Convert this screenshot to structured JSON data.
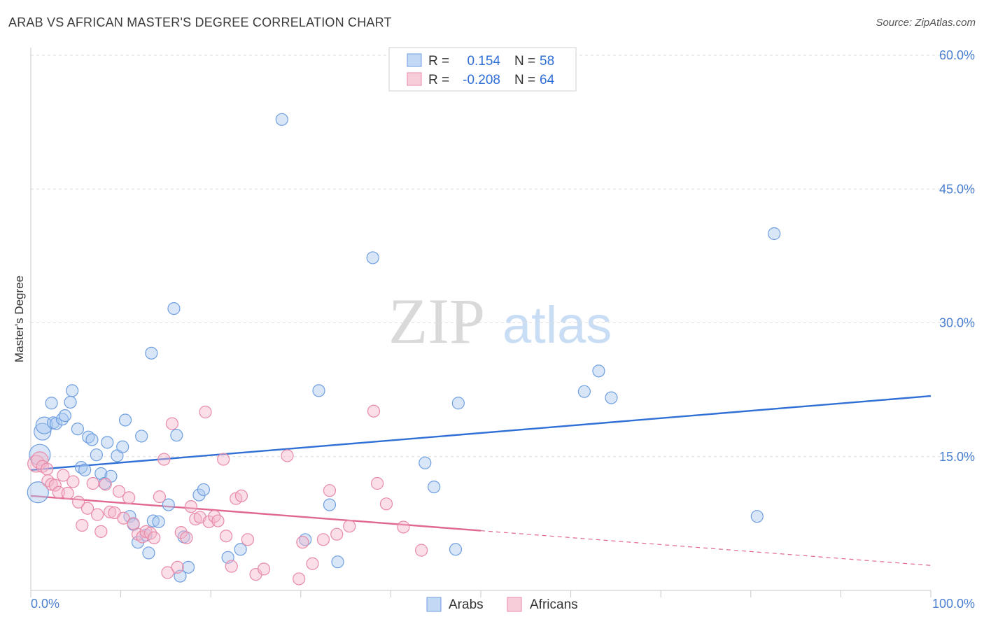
{
  "header": {
    "title": "ARAB VS AFRICAN MASTER'S DEGREE CORRELATION CHART",
    "source": "Source: ZipAtlas.com"
  },
  "watermark": {
    "zip": "ZIP",
    "atlas": "atlas"
  },
  "legend": {
    "r_label": "R =",
    "n_label": "N =",
    "arabs": {
      "r": "0.154",
      "n": "58"
    },
    "africans": {
      "r": "-0.208",
      "n": "64"
    }
  },
  "chart_data": {
    "type": "scatter",
    "title": "ARAB VS AFRICAN MASTER'S DEGREE CORRELATION CHART",
    "xlabel": "",
    "ylabel": "Master's Degree",
    "xlim": [
      0,
      100
    ],
    "ylim": [
      0,
      60
    ],
    "x_tick_labels": [
      "0.0%",
      "100.0%"
    ],
    "y_ticks": [
      {
        "value": 15,
        "label": "15.0%"
      },
      {
        "value": 30,
        "label": "30.0%"
      },
      {
        "value": 45,
        "label": "45.0%"
      },
      {
        "value": 60,
        "label": "60.0%"
      }
    ],
    "colors": {
      "arabs": "#2f6fd6",
      "arabs_fill": "#a9c8f0",
      "africans": "#e0688e",
      "africans_fill": "#f5b8cb"
    },
    "series": [
      {
        "name": "Arabs",
        "r": 0.154,
        "n": 58,
        "trend": {
          "x0": 0,
          "y0": 13.5,
          "x1": 100,
          "y1": 21.8,
          "dashed_from": null
        },
        "points": [
          [
            0.8,
            11.0,
            3
          ],
          [
            1.0,
            15.2,
            3
          ],
          [
            1.3,
            17.8,
            2
          ],
          [
            1.5,
            18.5,
            2
          ],
          [
            2.5,
            18.8,
            1
          ],
          [
            2.3,
            21.0,
            1
          ],
          [
            2.8,
            18.7,
            1
          ],
          [
            3.5,
            19.2,
            1
          ],
          [
            3.8,
            19.6,
            1
          ],
          [
            4.4,
            21.1,
            1
          ],
          [
            4.6,
            22.4,
            1
          ],
          [
            5.2,
            18.1,
            1
          ],
          [
            5.6,
            13.8,
            1
          ],
          [
            6.0,
            13.5,
            1
          ],
          [
            6.4,
            17.2,
            1
          ],
          [
            6.8,
            16.9,
            1
          ],
          [
            7.3,
            15.2,
            1
          ],
          [
            7.8,
            13.1,
            1
          ],
          [
            8.2,
            12.0,
            1
          ],
          [
            8.5,
            16.6,
            1
          ],
          [
            8.9,
            12.8,
            1
          ],
          [
            9.6,
            15.1,
            1
          ],
          [
            10.2,
            16.1,
            1
          ],
          [
            10.5,
            19.1,
            1
          ],
          [
            11.0,
            8.3,
            1
          ],
          [
            11.4,
            7.4,
            1
          ],
          [
            11.9,
            5.4,
            1
          ],
          [
            12.3,
            17.3,
            1
          ],
          [
            12.8,
            6.2,
            1
          ],
          [
            13.1,
            4.2,
            1
          ],
          [
            13.4,
            26.6,
            1
          ],
          [
            13.6,
            7.8,
            1
          ],
          [
            14.2,
            7.7,
            1
          ],
          [
            15.3,
            9.6,
            1
          ],
          [
            15.9,
            31.6,
            1
          ],
          [
            16.2,
            17.4,
            1
          ],
          [
            16.6,
            1.6,
            1
          ],
          [
            17.0,
            6.0,
            1
          ],
          [
            17.5,
            2.6,
            1
          ],
          [
            18.7,
            10.7,
            1
          ],
          [
            19.2,
            11.3,
            1
          ],
          [
            21.9,
            3.7,
            1
          ],
          [
            23.3,
            4.6,
            1
          ],
          [
            27.9,
            52.8,
            1
          ],
          [
            30.5,
            5.7,
            1
          ],
          [
            32.0,
            22.4,
            1
          ],
          [
            33.2,
            9.6,
            1
          ],
          [
            34.1,
            3.2,
            1
          ],
          [
            38.0,
            37.3,
            1
          ],
          [
            43.8,
            14.3,
            1
          ],
          [
            44.8,
            11.6,
            1
          ],
          [
            47.2,
            4.6,
            1
          ],
          [
            47.5,
            21.0,
            1
          ],
          [
            61.5,
            22.3,
            1
          ],
          [
            63.1,
            24.6,
            1
          ],
          [
            64.5,
            21.6,
            1
          ],
          [
            80.7,
            8.3,
            1
          ],
          [
            82.6,
            40.0,
            1
          ]
        ]
      },
      {
        "name": "Africans",
        "r": -0.208,
        "n": 64,
        "trend": {
          "x0": 0,
          "y0": 10.6,
          "x1": 100,
          "y1": 2.8,
          "dashed_from": 50
        },
        "points": [
          [
            0.6,
            14.2,
            2
          ],
          [
            1.0,
            14.6,
            2
          ],
          [
            1.3,
            13.9,
            1
          ],
          [
            1.8,
            13.6,
            1
          ],
          [
            1.9,
            12.3,
            1
          ],
          [
            2.3,
            11.9,
            1
          ],
          [
            2.7,
            11.8,
            1
          ],
          [
            3.1,
            11.0,
            1
          ],
          [
            3.6,
            12.9,
            1
          ],
          [
            4.1,
            10.9,
            1
          ],
          [
            4.7,
            12.2,
            1
          ],
          [
            5.3,
            9.9,
            1
          ],
          [
            5.7,
            7.3,
            1
          ],
          [
            6.3,
            9.2,
            1
          ],
          [
            6.9,
            12.0,
            1
          ],
          [
            7.4,
            8.5,
            1
          ],
          [
            7.8,
            6.6,
            1
          ],
          [
            8.3,
            11.9,
            1
          ],
          [
            8.8,
            8.8,
            1
          ],
          [
            9.3,
            8.7,
            1
          ],
          [
            9.8,
            11.1,
            1
          ],
          [
            10.3,
            8.1,
            1
          ],
          [
            10.9,
            10.4,
            1
          ],
          [
            11.4,
            7.5,
            1
          ],
          [
            11.9,
            6.3,
            1
          ],
          [
            12.4,
            6.0,
            1
          ],
          [
            12.8,
            6.6,
            1
          ],
          [
            13.3,
            6.4,
            1
          ],
          [
            13.7,
            5.9,
            1
          ],
          [
            14.3,
            10.5,
            1
          ],
          [
            14.8,
            14.7,
            1
          ],
          [
            15.2,
            2.0,
            1
          ],
          [
            15.7,
            18.7,
            1
          ],
          [
            16.3,
            2.6,
            1
          ],
          [
            16.7,
            6.5,
            1
          ],
          [
            17.3,
            5.9,
            1
          ],
          [
            17.8,
            9.4,
            1
          ],
          [
            18.3,
            8.0,
            1
          ],
          [
            18.8,
            8.2,
            1
          ],
          [
            19.4,
            20.0,
            1
          ],
          [
            19.8,
            7.7,
            1
          ],
          [
            20.4,
            8.3,
            1
          ],
          [
            20.8,
            7.8,
            1
          ],
          [
            21.4,
            14.7,
            1
          ],
          [
            21.7,
            6.1,
            1
          ],
          [
            22.3,
            2.7,
            1
          ],
          [
            22.8,
            10.3,
            1
          ],
          [
            23.4,
            10.6,
            1
          ],
          [
            24.1,
            5.7,
            1
          ],
          [
            25.0,
            1.8,
            1
          ],
          [
            25.9,
            2.4,
            1
          ],
          [
            28.5,
            15.1,
            1
          ],
          [
            29.8,
            1.3,
            1
          ],
          [
            30.2,
            5.4,
            1
          ],
          [
            31.3,
            3.0,
            1
          ],
          [
            32.5,
            5.7,
            1
          ],
          [
            33.2,
            11.2,
            1
          ],
          [
            34.0,
            6.3,
            1
          ],
          [
            35.4,
            7.2,
            1
          ],
          [
            38.1,
            20.1,
            1
          ],
          [
            38.5,
            12.0,
            1
          ],
          [
            39.5,
            9.7,
            1
          ],
          [
            41.4,
            7.1,
            1
          ],
          [
            43.4,
            4.5,
            1
          ]
        ]
      }
    ]
  },
  "bottom_legend": {
    "arabs": "Arabs",
    "africans": "Africans"
  }
}
